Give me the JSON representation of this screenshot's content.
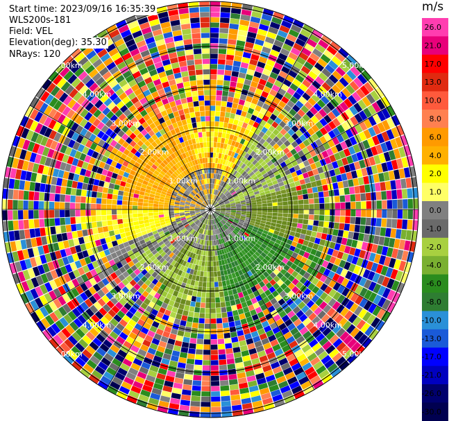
{
  "header": {
    "start_time": "Start time: 2023/09/16 16:35:39",
    "instrument": "WLS200s-181",
    "field": "Field: VEL",
    "elevation": "Elevation(deg): 35.30",
    "nrays": "NRays: 120"
  },
  "chart_data": {
    "type": "heatmap",
    "subtype": "ppi-radial-velocity",
    "colorbar": {
      "unit": "m/s",
      "ticks": [
        "26.0",
        "21.0",
        "17.0",
        "13.0",
        "10.0",
        "8.0",
        "6.0",
        "4.0",
        "2.0",
        "1.0",
        "0.0",
        "-1.0",
        "-2.0",
        "-4.0",
        "-6.0",
        "-8.0",
        "-10.0",
        "-13.0",
        "-17.0",
        "-21.0",
        "-26.0",
        "-30.0"
      ],
      "colors": [
        "#ff3db0",
        "#e8007a",
        "#ff0000",
        "#e02a10",
        "#ff5a3c",
        "#ff8050",
        "#ff9a00",
        "#ffb000",
        "#ffff00",
        "#ffff66",
        "#808080",
        "#6a6a6a",
        "#a8d040",
        "#7ab030",
        "#2a8c1e",
        "#2e7d32",
        "#2a90d8",
        "#1a5ad8",
        "#0000ff",
        "#0000c0",
        "#00006e",
        "#000050"
      ]
    },
    "range_rings": [
      {
        "label": "1.00km"
      },
      {
        "label": "2.00km"
      },
      {
        "label": "3.00km"
      },
      {
        "label": "4.00km"
      },
      {
        "label": "5.00km"
      }
    ],
    "grid": true
  }
}
